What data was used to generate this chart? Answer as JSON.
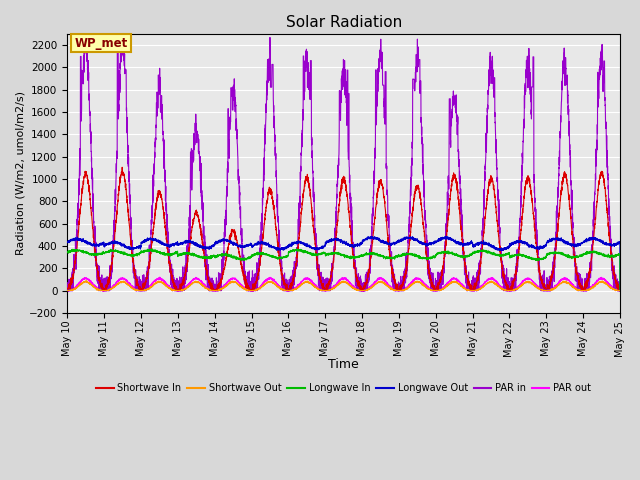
{
  "title": "Solar Radiation",
  "ylabel": "Radiation (W/m2, umol/m2/s)",
  "xlabel": "Time",
  "ylim": [
    -200,
    2300
  ],
  "yticks": [
    -200,
    0,
    200,
    400,
    600,
    800,
    1000,
    1200,
    1400,
    1600,
    1800,
    2000,
    2200
  ],
  "fig_bg_color": "#d8d8d8",
  "plot_bg_color": "#e8e8e8",
  "grid_color": "#ffffff",
  "legend_labels": [
    "Shortwave In",
    "Shortwave Out",
    "Longwave In",
    "Longwave Out",
    "PAR in",
    "PAR out"
  ],
  "legend_colors": [
    "#dd0000",
    "#ff9900",
    "#00bb00",
    "#0000cc",
    "#9900cc",
    "#ff00ff"
  ],
  "annotation_text": "WP_met",
  "annotation_fg": "#880000",
  "annotation_bg": "#ffffaa",
  "annotation_edge": "#cc9900",
  "n_days": 15,
  "start_day": 10,
  "pts_per_day": 288
}
